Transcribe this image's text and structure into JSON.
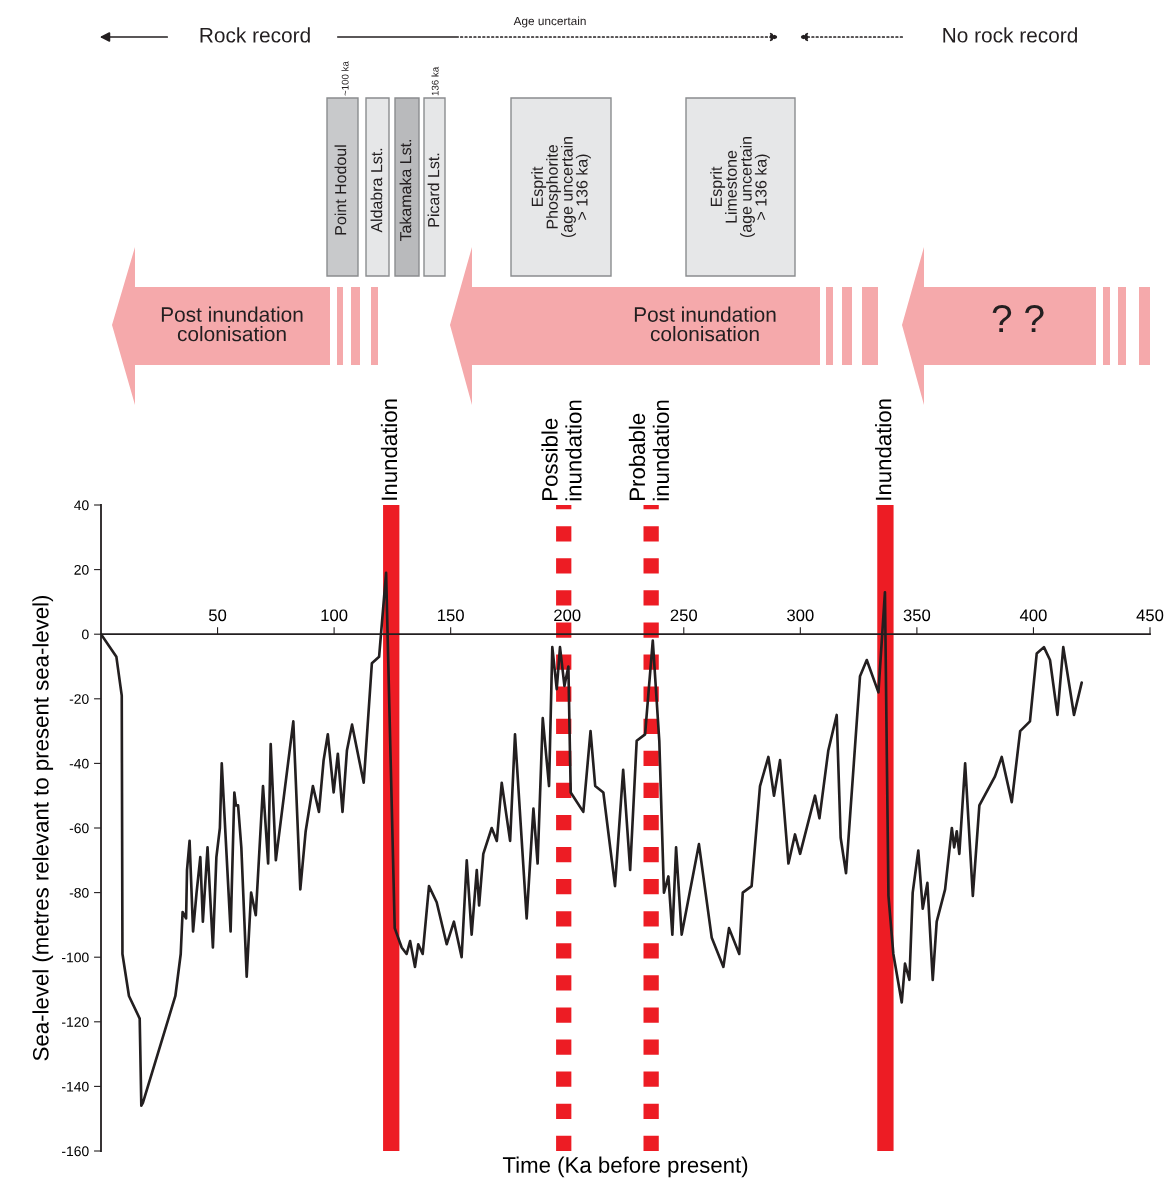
{
  "chart_data": {
    "type": "line",
    "xlabel": "Time (Ka before present)",
    "ylabel": "Sea-level (metres relevant to present sea-level)",
    "xlim": [
      0,
      450
    ],
    "xticks": [
      50,
      100,
      150,
      200,
      250,
      300,
      350,
      400,
      450
    ],
    "ylim": [
      -160,
      40
    ],
    "yticks": [
      -160,
      -140,
      -120,
      -100,
      -80,
      -60,
      -40,
      -20,
      0,
      20,
      40
    ],
    "series": [
      {
        "color": "#231f20",
        "x": [
          0,
          6.6,
          8.9,
          9.2,
          12,
          16.6,
          17.3,
          18,
          31.9,
          34.2,
          35,
          36.5,
          36.9,
          38,
          39.5,
          41,
          42.6,
          43.7,
          45.7,
          48,
          49.5,
          51,
          51.8,
          55.6,
          57.2,
          57.9,
          58.8,
          60.2,
          62.5,
          64.4,
          66.4,
          69.5,
          71.7,
          72.8,
          75,
          82.5,
          85.5,
          87.8,
          90.9,
          93.5,
          95.5,
          97.3,
          99.8,
          101.6,
          103.6,
          105.5,
          107.7,
          112.7,
          116.2,
          119.3,
          122.3,
          126,
          129,
          131.1,
          132.6,
          134.7,
          136.1,
          138,
          140.7,
          144,
          148.3,
          151.4,
          154.7,
          156.9,
          159,
          161.2,
          162.2,
          164,
          167.6,
          169.8,
          171.9,
          175.5,
          177.6,
          182.6,
          185.5,
          187.3,
          189.5,
          192.2,
          193.6,
          195.5,
          196.9,
          198.8,
          200.5,
          201.5,
          206.9,
          210,
          212,
          215.5,
          220.5,
          224,
          227,
          229.8,
          233.4,
          236.7,
          239.5,
          241.5,
          243.4,
          245.1,
          246.7,
          249.1,
          256.5,
          262,
          267,
          269.4,
          273.8,
          275.3,
          279.1,
          282.7,
          286.3,
          288.7,
          291.3,
          294.9,
          297.7,
          299.9,
          306.3,
          308.2,
          312,
          315.6,
          317.3,
          319.6,
          325.6,
          328.5,
          333.5,
          336.3,
          337.8,
          339.9,
          343.5,
          344.9,
          346.8,
          348.2,
          350.6,
          352.5,
          354.5,
          356.8,
          358.5,
          362.1,
          365,
          366,
          367.1,
          368.2,
          370.7,
          374,
          376.8,
          383.5,
          386.4,
          390.7,
          394.3,
          398.5,
          401.4,
          404.5,
          407.1,
          410.3,
          412.8,
          417.4,
          420.7
        ],
        "values": [
          0,
          -7,
          -19,
          -99,
          -112,
          -119,
          -146,
          -145,
          -112,
          -99,
          -86,
          -88,
          -73,
          -64,
          -92,
          -80,
          -69,
          -89,
          -66,
          -97,
          -69,
          -60,
          -40,
          -92,
          -49,
          -53,
          -53,
          -66,
          -106,
          -80,
          -87,
          -47,
          -71,
          -34,
          -70,
          -27,
          -79,
          -61,
          -47,
          -55,
          -39,
          -31,
          -49,
          -37,
          -55,
          -36,
          -28,
          -46,
          -9,
          -7,
          19,
          -91,
          -97,
          -99,
          -95,
          -103,
          -96,
          -99,
          -78,
          -83,
          -96,
          -89,
          -100,
          -70,
          -93,
          -73,
          -84,
          -68,
          -60,
          -64,
          -46,
          -64,
          -31,
          -88,
          -54,
          -71,
          -26,
          -47,
          -4,
          -17,
          -4,
          -16,
          -10,
          -49,
          -55,
          -30,
          -47,
          -49,
          -78,
          -42,
          -73,
          -33,
          -31,
          -2,
          -33,
          -80,
          -75,
          -93,
          -66,
          -93,
          -65,
          -94,
          -103,
          -91,
          -99,
          -80,
          -78,
          -47,
          -38,
          -50,
          -39,
          -71,
          -62,
          -68,
          -50,
          -57,
          -36,
          -25,
          -63,
          -74,
          -13,
          -8,
          -18,
          13,
          -81,
          -99,
          -114,
          -102,
          -107,
          -80,
          -67,
          -85,
          -77,
          -107,
          -89,
          -79,
          -60,
          -66,
          -61,
          -68,
          -40,
          -81,
          -53,
          -44,
          -38,
          -52,
          -30,
          -27,
          -6,
          -4,
          -8,
          -25,
          -4,
          -25,
          -15
        ]
      }
    ],
    "bands": [
      {
        "axis": "x",
        "from": 121,
        "to": 128,
        "label": "Inundation",
        "color": "#ed1c24"
      },
      {
        "axis": "x",
        "from": 333,
        "to": 340,
        "label": "Inundation",
        "color": "#ed1c24"
      }
    ],
    "ref_lines": [
      {
        "axis": "x",
        "value": 198.5,
        "label": "Possible\ninundation",
        "color": "#ed1c24",
        "line_style": "dashed"
      },
      {
        "axis": "x",
        "value": 236,
        "label": "Probable\ninundation",
        "color": "#ed1c24",
        "line_style": "dashed"
      }
    ],
    "annotations": [
      "Rock record",
      "Age uncertain",
      "No rock record",
      "~100 ka",
      "136 ka",
      "Point Hodoul",
      "Aldabra Lst.",
      "Takamaka Lst.",
      "Picard Lst.",
      "Esprit\nPhosphorite\n(age uncertain\n> 136 ka)",
      "Esprit\nLimestone\n(age uncertain\n> 136 ka)",
      "Post inundation\ncolonisation",
      "Post inundation\ncolonisation",
      "? ?"
    ]
  }
}
